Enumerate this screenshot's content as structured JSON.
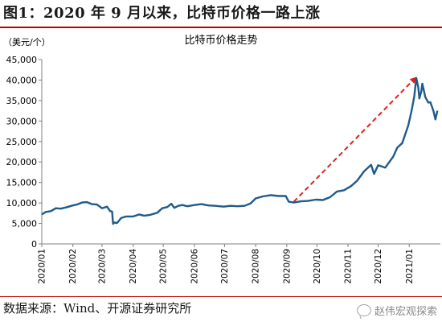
{
  "figure": {
    "title": "图1：2020 年 9 月以来，比特币价格一路上涨",
    "source": "数据来源：Wind、开源证券研究所",
    "watermark": "赵伟宏观探索",
    "watermark_icon": "wechat-icon"
  },
  "colors": {
    "series": "#1f5b8a",
    "trend_arrow": "#e02020",
    "title_rule": "#c00000",
    "axis": "#808080"
  },
  "chart_data": {
    "type": "line",
    "title": "比特币价格走势",
    "ylabel": "（美元/个）",
    "xlabel": "",
    "ylim": [
      0,
      45000
    ],
    "yticks": [
      0,
      5000,
      10000,
      15000,
      20000,
      25000,
      30000,
      35000,
      40000,
      45000
    ],
    "ytick_labels": [
      "0",
      "5,000",
      "10,000",
      "15,000",
      "20,000",
      "25,000",
      "30,000",
      "35,000",
      "40,000",
      "45,000"
    ],
    "xtick_labels": [
      "2020/01",
      "2020/02",
      "2020/03",
      "2020/04",
      "2020/05",
      "2020/06",
      "2020/07",
      "2020/08",
      "2020/09",
      "2020/10",
      "2020/11",
      "2020/12",
      "2021/01"
    ],
    "grid": false,
    "legend": "none",
    "series": [
      {
        "x": [
          "2020-01-01",
          "2020-01-05",
          "2020-01-10",
          "2020-01-15",
          "2020-01-20",
          "2020-01-25",
          "2020-02-01",
          "2020-02-05",
          "2020-02-10",
          "2020-02-15",
          "2020-02-20",
          "2020-02-25",
          "2020-03-01",
          "2020-03-06",
          "2020-03-09",
          "2020-03-11",
          "2020-03-12",
          "2020-03-13",
          "2020-03-16",
          "2020-03-20",
          "2020-03-25",
          "2020-04-01",
          "2020-04-07",
          "2020-04-12",
          "2020-04-18",
          "2020-04-25",
          "2020-04-30",
          "2020-05-05",
          "2020-05-09",
          "2020-05-12",
          "2020-05-16",
          "2020-05-20",
          "2020-05-25",
          "2020-06-01",
          "2020-06-08",
          "2020-06-15",
          "2020-06-22",
          "2020-06-30",
          "2020-07-07",
          "2020-07-14",
          "2020-07-21",
          "2020-07-27",
          "2020-08-01",
          "2020-08-08",
          "2020-08-16",
          "2020-08-24",
          "2020-08-31",
          "2020-09-03",
          "2020-09-08",
          "2020-09-15",
          "2020-09-22",
          "2020-09-30",
          "2020-10-07",
          "2020-10-14",
          "2020-10-21",
          "2020-10-28",
          "2020-11-04",
          "2020-11-10",
          "2020-11-17",
          "2020-11-24",
          "2020-11-27",
          "2020-12-01",
          "2020-12-08",
          "2020-12-16",
          "2020-12-20",
          "2020-12-25",
          "2020-12-31",
          "2021-01-03",
          "2021-01-06",
          "2021-01-08",
          "2021-01-10",
          "2021-01-11",
          "2021-01-13",
          "2021-01-14",
          "2021-01-17",
          "2021-01-20",
          "2021-01-22",
          "2021-01-25",
          "2021-01-27",
          "2021-01-29"
        ],
        "values": [
          7200,
          7800,
          8000,
          8700,
          8600,
          8900,
          9400,
          9600,
          10100,
          10200,
          9700,
          9600,
          8700,
          9100,
          8000,
          7900,
          4900,
          5200,
          5100,
          6300,
          6700,
          6700,
          7200,
          6900,
          7100,
          7600,
          8700,
          9000,
          9800,
          8800,
          9300,
          9500,
          9200,
          9500,
          9700,
          9400,
          9300,
          9100,
          9300,
          9200,
          9300,
          9900,
          11100,
          11600,
          11900,
          11700,
          11700,
          10300,
          10100,
          10400,
          10500,
          10800,
          10700,
          11400,
          12800,
          13100,
          14100,
          15400,
          17700,
          19300,
          17100,
          19200,
          18600,
          21300,
          23500,
          24600,
          28900,
          32200,
          36000,
          40500,
          38200,
          35500,
          37300,
          39100,
          35800,
          34500,
          34600,
          32500,
          30400,
          32500
        ]
      }
    ],
    "annotation": {
      "type": "arrow",
      "style": "dashed",
      "from": {
        "x": "2020-09-08",
        "y": 10300
      },
      "to": {
        "x": "2021-01-07",
        "y": 40500
      }
    }
  }
}
